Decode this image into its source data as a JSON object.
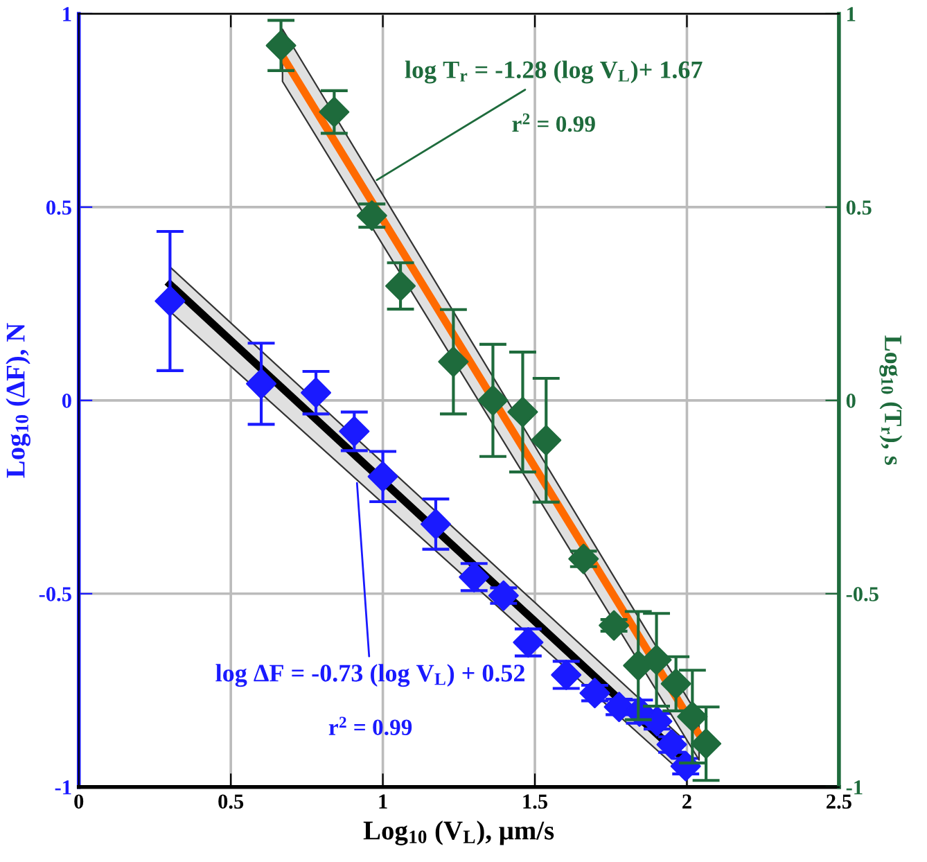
{
  "chart_data": {
    "type": "scatter",
    "xlabel": "Log$_{10}$ (V$_{L}$), μm/s",
    "ylabel": "Log$_{10}$ (ΔF), N",
    "y2label": "Log$_{10}$ (T$_{r}$), s",
    "xlim": [
      0,
      2.5
    ],
    "xticks": [
      0,
      0.5,
      1,
      1.5,
      2,
      2.5
    ],
    "ylim": [
      -1,
      1
    ],
    "yticks": [
      {
        "value": -1,
        "label": "-1"
      },
      {
        "value": -0.5,
        "label": "-0.5"
      },
      0,
      0.5,
      1
    ],
    "y2lim": [
      -1,
      1
    ],
    "y2ticks": [
      {
        "value": -1,
        "label": "-1"
      },
      {
        "value": -0.5,
        "label": "-0.5"
      },
      0,
      0.5,
      1
    ],
    "grid": true,
    "marker": "diamond",
    "series": [
      {
        "axis": "y2",
        "color": "#1e6b3c",
        "x": [
          0.665,
          0.84,
          0.964,
          1.058,
          1.232,
          1.362,
          1.46,
          1.537,
          1.66,
          1.76,
          1.84,
          1.9,
          1.964,
          2.018,
          2.063
        ],
        "values": [
          0.918,
          0.746,
          0.478,
          0.296,
          0.1,
          0.0,
          -0.03,
          -0.103,
          -0.41,
          -0.582,
          -0.686,
          -0.671,
          -0.733,
          -0.818,
          -0.888
        ],
        "errors": [
          0.065,
          0.055,
          0.03,
          0.06,
          0.135,
          0.145,
          0.155,
          0.16,
          0.02,
          0.015,
          0.14,
          0.12,
          0.07,
          0.12,
          0.095
        ]
      },
      {
        "type": "line",
        "marker": "none",
        "axis": "y2",
        "color": "#ff6a00",
        "x": [
          0.67,
          2.04
        ],
        "values": [
          0.89,
          -0.864
        ],
        "lower": [
          0.825,
          -0.93
        ],
        "upper": [
          0.96,
          -0.82
        ]
      },
      {
        "axis": "y",
        "color": "#1a1aff",
        "x": [
          0.3,
          0.6,
          0.78,
          0.906,
          1.0,
          1.174,
          1.3,
          1.397,
          1.478,
          1.603,
          1.697,
          1.777,
          1.844,
          1.902,
          1.95,
          1.996
        ],
        "values": [
          0.257,
          0.043,
          0.02,
          -0.08,
          -0.197,
          -0.32,
          -0.457,
          -0.505,
          -0.626,
          -0.71,
          -0.757,
          -0.793,
          -0.805,
          -0.83,
          -0.89,
          -0.946
        ],
        "errors": [
          0.18,
          0.105,
          0.055,
          0.05,
          0.065,
          0.065,
          0.035,
          0.02,
          0.035,
          0.035,
          0.02,
          0.02,
          0.03,
          0.02,
          0.02,
          0.02
        ]
      },
      {
        "type": "line",
        "marker": "none",
        "axis": "y",
        "color": "#000000",
        "x": [
          0.3,
          1.98
        ],
        "values": [
          0.3,
          -0.92
        ],
        "lower": [
          0.23,
          -0.96
        ],
        "upper": [
          0.345,
          -0.87
        ]
      }
    ],
    "annotations": [
      {
        "text": "log T$_{r}$ = -1.28 (log V$_{L}$)+ 1.67",
        "x": 0.98,
        "y": 0.57
      },
      "r$^{2}$ = 0.99",
      {
        "text": "log ΔF = -0.73 (log V$_{L}$) + 0.52",
        "x": 0.915,
        "y": -0.214
      },
      "r$^{2}$ = 0.99"
    ]
  }
}
